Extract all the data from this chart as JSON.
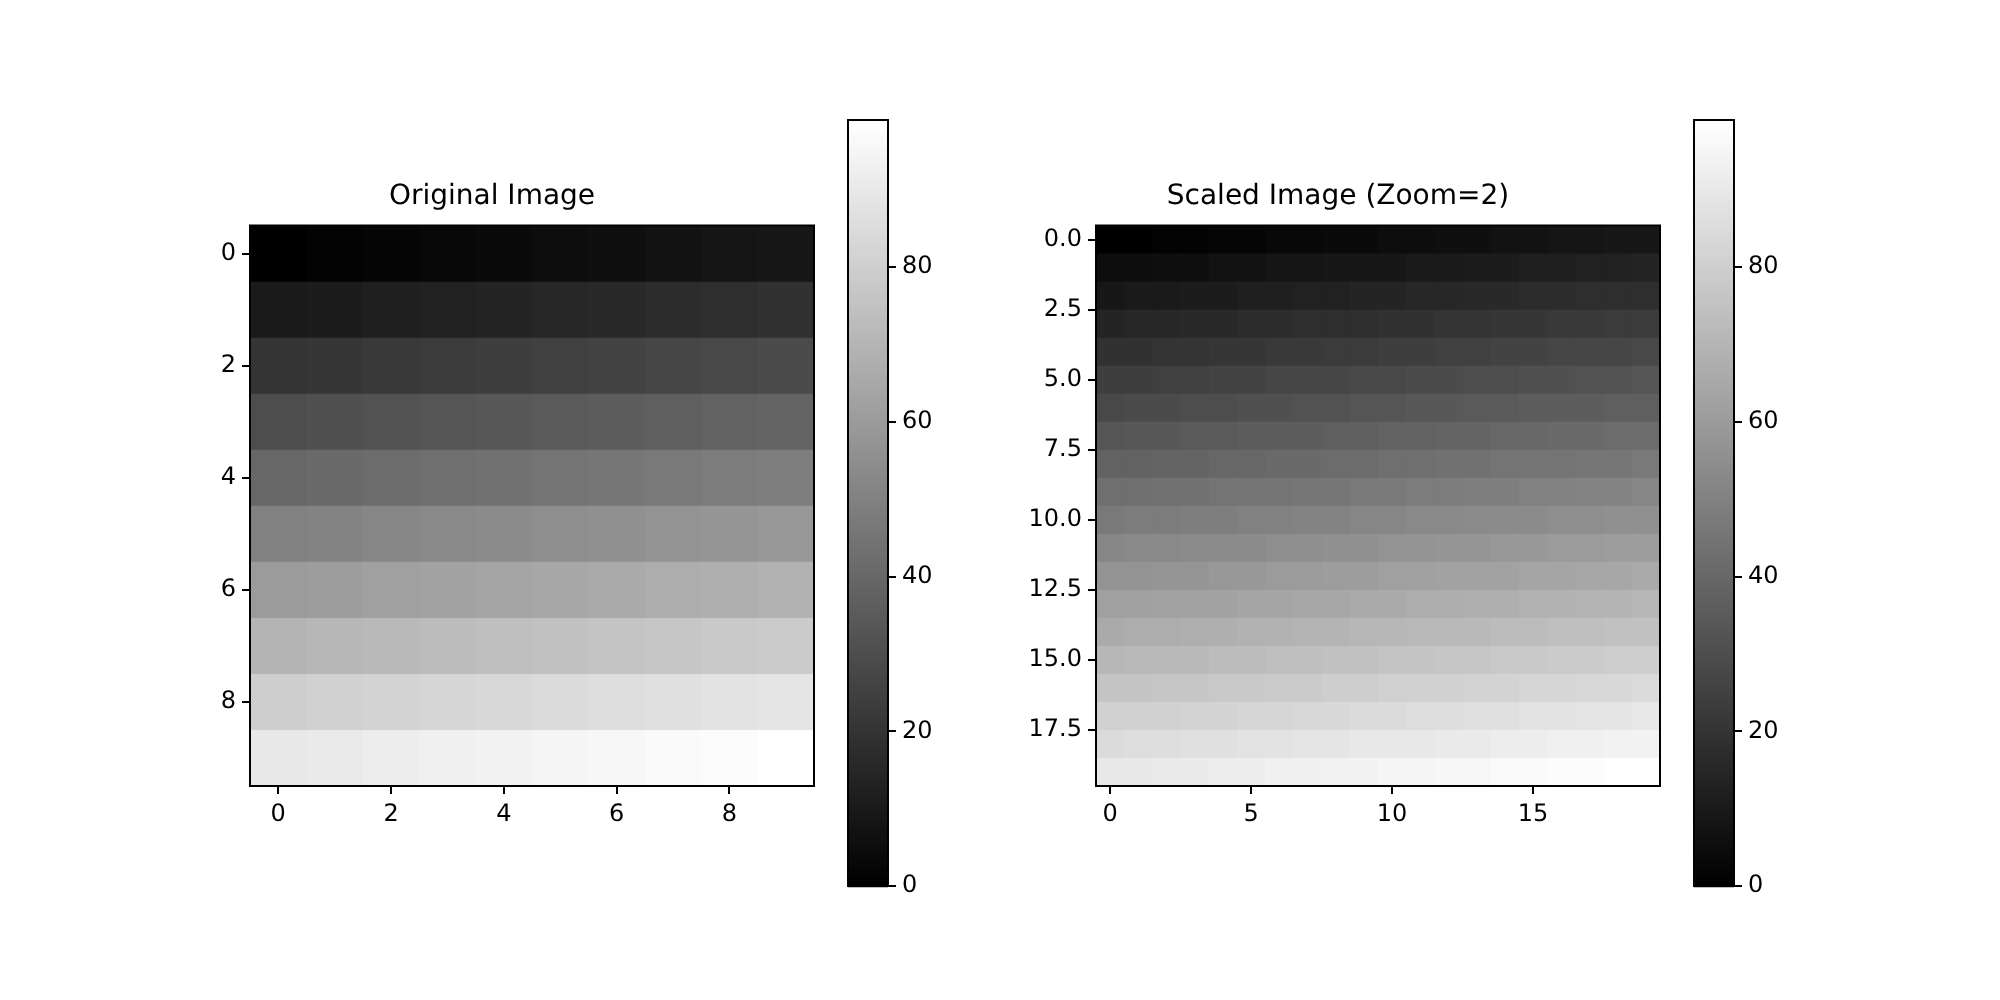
{
  "chart_data": [
    {
      "type": "heatmap",
      "title": "Original Image",
      "xlim": [
        -0.5,
        9.5
      ],
      "xticks": [
        0,
        2,
        4,
        6,
        8
      ],
      "ylim": [
        9.5,
        -0.5
      ],
      "yticks": [
        0,
        2,
        4,
        6,
        8
      ],
      "clim": [
        0,
        99
      ],
      "cticks": [
        0,
        20,
        40,
        60,
        80
      ],
      "cells": [
        [
          0,
          1,
          2,
          3,
          4,
          5,
          6,
          7,
          8,
          9
        ],
        [
          10,
          11,
          12,
          13,
          14,
          15,
          16,
          17,
          18,
          19
        ],
        [
          20,
          21,
          22,
          23,
          24,
          25,
          26,
          27,
          28,
          29
        ],
        [
          30,
          31,
          32,
          33,
          34,
          35,
          36,
          37,
          38,
          39
        ],
        [
          40,
          41,
          42,
          43,
          44,
          45,
          46,
          47,
          48,
          49
        ],
        [
          50,
          51,
          52,
          53,
          54,
          55,
          56,
          57,
          58,
          59
        ],
        [
          60,
          61,
          62,
          63,
          64,
          65,
          66,
          67,
          68,
          69
        ],
        [
          70,
          71,
          72,
          73,
          74,
          75,
          76,
          77,
          78,
          79
        ],
        [
          80,
          81,
          82,
          83,
          84,
          85,
          86,
          87,
          88,
          89
        ],
        [
          90,
          91,
          92,
          93,
          94,
          95,
          96,
          97,
          98,
          99
        ]
      ]
    },
    {
      "type": "heatmap",
      "title": "Scaled Image (Zoom=2)",
      "xlim": [
        -0.5,
        19.5
      ],
      "xticks": [
        0,
        5,
        10,
        15
      ],
      "ylim": [
        19.5,
        -0.5
      ],
      "yticks": [
        {
          "value": 0,
          "label": "0.0"
        },
        {
          "value": 2.5,
          "label": "2.5"
        },
        {
          "value": 5,
          "label": "5.0"
        },
        {
          "value": 7.5,
          "label": "7.5"
        },
        {
          "value": 10,
          "label": "10.0"
        },
        {
          "value": 12.5,
          "label": "12.5"
        },
        {
          "value": 15,
          "label": "15.0"
        },
        {
          "value": 17.5,
          "label": "17.5"
        }
      ],
      "clim": [
        0,
        99
      ],
      "cticks": [
        0,
        20,
        40,
        60,
        80
      ],
      "cells": [
        [
          0,
          0,
          1,
          1,
          2,
          2,
          3,
          3,
          4,
          4,
          5,
          5,
          6,
          6,
          7,
          7,
          8,
          8,
          9,
          9
        ],
        [
          5,
          5,
          6,
          6,
          7,
          7,
          8,
          8,
          9,
          9,
          9,
          10,
          10,
          11,
          11,
          12,
          12,
          13,
          13,
          14
        ],
        [
          9,
          10,
          10,
          11,
          11,
          12,
          12,
          13,
          13,
          14,
          14,
          15,
          15,
          16,
          16,
          17,
          17,
          18,
          18,
          18
        ],
        [
          14,
          15,
          15,
          16,
          16,
          17,
          17,
          18,
          18,
          18,
          19,
          19,
          20,
          20,
          21,
          21,
          22,
          22,
          23,
          23
        ],
        [
          19,
          19,
          20,
          20,
          21,
          21,
          22,
          22,
          23,
          23,
          24,
          24,
          25,
          25,
          26,
          26,
          27,
          27,
          27,
          28
        ],
        [
          24,
          24,
          25,
          25,
          26,
          26,
          27,
          27,
          27,
          28,
          28,
          29,
          29,
          30,
          30,
          31,
          31,
          32,
          32,
          33
        ],
        [
          28,
          29,
          29,
          30,
          30,
          31,
          31,
          32,
          32,
          33,
          33,
          34,
          34,
          35,
          35,
          36,
          36,
          36,
          37,
          37
        ],
        [
          33,
          34,
          34,
          35,
          35,
          36,
          36,
          36,
          37,
          37,
          38,
          38,
          39,
          39,
          40,
          40,
          41,
          41,
          42,
          42
        ],
        [
          38,
          38,
          39,
          39,
          40,
          40,
          41,
          41,
          42,
          42,
          43,
          43,
          44,
          44,
          45,
          45,
          45,
          46,
          46,
          47
        ],
        [
          43,
          43,
          44,
          44,
          45,
          45,
          45,
          46,
          46,
          47,
          47,
          48,
          48,
          49,
          49,
          50,
          50,
          51,
          51,
          52
        ],
        [
          47,
          48,
          48,
          49,
          49,
          50,
          50,
          51,
          51,
          52,
          52,
          53,
          53,
          54,
          54,
          54,
          55,
          55,
          56,
          56
        ],
        [
          52,
          53,
          53,
          54,
          54,
          54,
          55,
          55,
          56,
          56,
          57,
          57,
          58,
          58,
          59,
          59,
          60,
          60,
          61,
          61
        ],
        [
          57,
          57,
          58,
          58,
          59,
          59,
          60,
          60,
          61,
          61,
          62,
          62,
          63,
          63,
          63,
          64,
          64,
          65,
          65,
          66
        ],
        [
          62,
          62,
          63,
          63,
          63,
          64,
          64,
          65,
          65,
          66,
          66,
          67,
          67,
          68,
          68,
          69,
          69,
          70,
          70,
          71
        ],
        [
          66,
          67,
          67,
          68,
          68,
          69,
          69,
          70,
          70,
          71,
          71,
          72,
          72,
          72,
          73,
          73,
          74,
          74,
          75,
          75
        ],
        [
          71,
          72,
          72,
          72,
          73,
          73,
          74,
          74,
          75,
          75,
          76,
          76,
          77,
          77,
          78,
          78,
          79,
          79,
          80,
          80
        ],
        [
          76,
          76,
          77,
          77,
          78,
          78,
          79,
          79,
          80,
          80,
          81,
          81,
          81,
          82,
          82,
          83,
          83,
          84,
          84,
          85
        ],
        [
          81,
          81,
          81,
          82,
          82,
          83,
          83,
          84,
          84,
          85,
          85,
          86,
          86,
          87,
          87,
          88,
          88,
          89,
          89,
          90
        ],
        [
          85,
          86,
          86,
          87,
          87,
          88,
          88,
          89,
          89,
          90,
          90,
          90,
          91,
          91,
          92,
          92,
          93,
          93,
          94,
          94
        ],
        [
          90,
          90,
          91,
          91,
          92,
          92,
          93,
          93,
          94,
          94,
          95,
          95,
          96,
          96,
          97,
          97,
          98,
          98,
          99,
          99
        ]
      ]
    }
  ]
}
